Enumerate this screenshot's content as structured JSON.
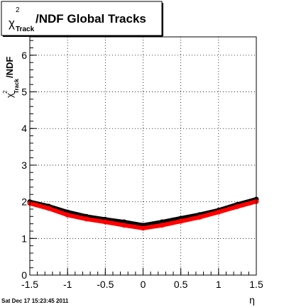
{
  "title": {
    "chi": "χ",
    "sup": "2",
    "sub": "Track",
    "rest": "/NDF  Global Tracks"
  },
  "ylabel": {
    "chi": "χ",
    "sup": "2",
    "sub": "Track",
    "rest": "/NDF"
  },
  "xlabel": "η",
  "timestamp": "Sat Dec 17 15:23:45 2011",
  "chart_data": {
    "type": "scatter",
    "title": "χ²_Track/NDF  Global Tracks",
    "xlabel": "η",
    "ylabel": "χ²_Track/NDF",
    "xlim": [
      -1.5,
      1.5
    ],
    "ylim": [
      0,
      6.5
    ],
    "grid": true,
    "x_ticks": [
      -1.5,
      -1,
      -0.5,
      0,
      0.5,
      1,
      1.5
    ],
    "x_tick_labels": [
      "-1.5",
      "-1",
      "-0.5",
      "0",
      "0.5",
      "1",
      "1.5"
    ],
    "y_ticks": [
      0,
      1,
      2,
      3,
      4,
      5,
      6
    ],
    "y_tick_labels": [
      "0",
      "1",
      "2",
      "3",
      "4",
      "5",
      "6"
    ],
    "series": [
      {
        "color": "#000000",
        "x": [
          -1.5,
          -1.25,
          -1.0,
          -0.75,
          -0.5,
          -0.25,
          0.0,
          0.25,
          0.5,
          0.75,
          1.0,
          1.25,
          1.5
        ],
        "y": [
          2.0,
          1.88,
          1.72,
          1.6,
          1.52,
          1.45,
          1.36,
          1.45,
          1.55,
          1.65,
          1.77,
          1.93,
          2.07
        ]
      },
      {
        "color": "#ff0000",
        "x": [
          -1.5,
          -1.25,
          -1.0,
          -0.75,
          -0.5,
          -0.25,
          0.0,
          0.25,
          0.5,
          0.75,
          1.0,
          1.25,
          1.5
        ],
        "y": [
          1.96,
          1.82,
          1.64,
          1.53,
          1.45,
          1.36,
          1.28,
          1.36,
          1.47,
          1.58,
          1.72,
          1.87,
          2.01
        ]
      }
    ]
  }
}
